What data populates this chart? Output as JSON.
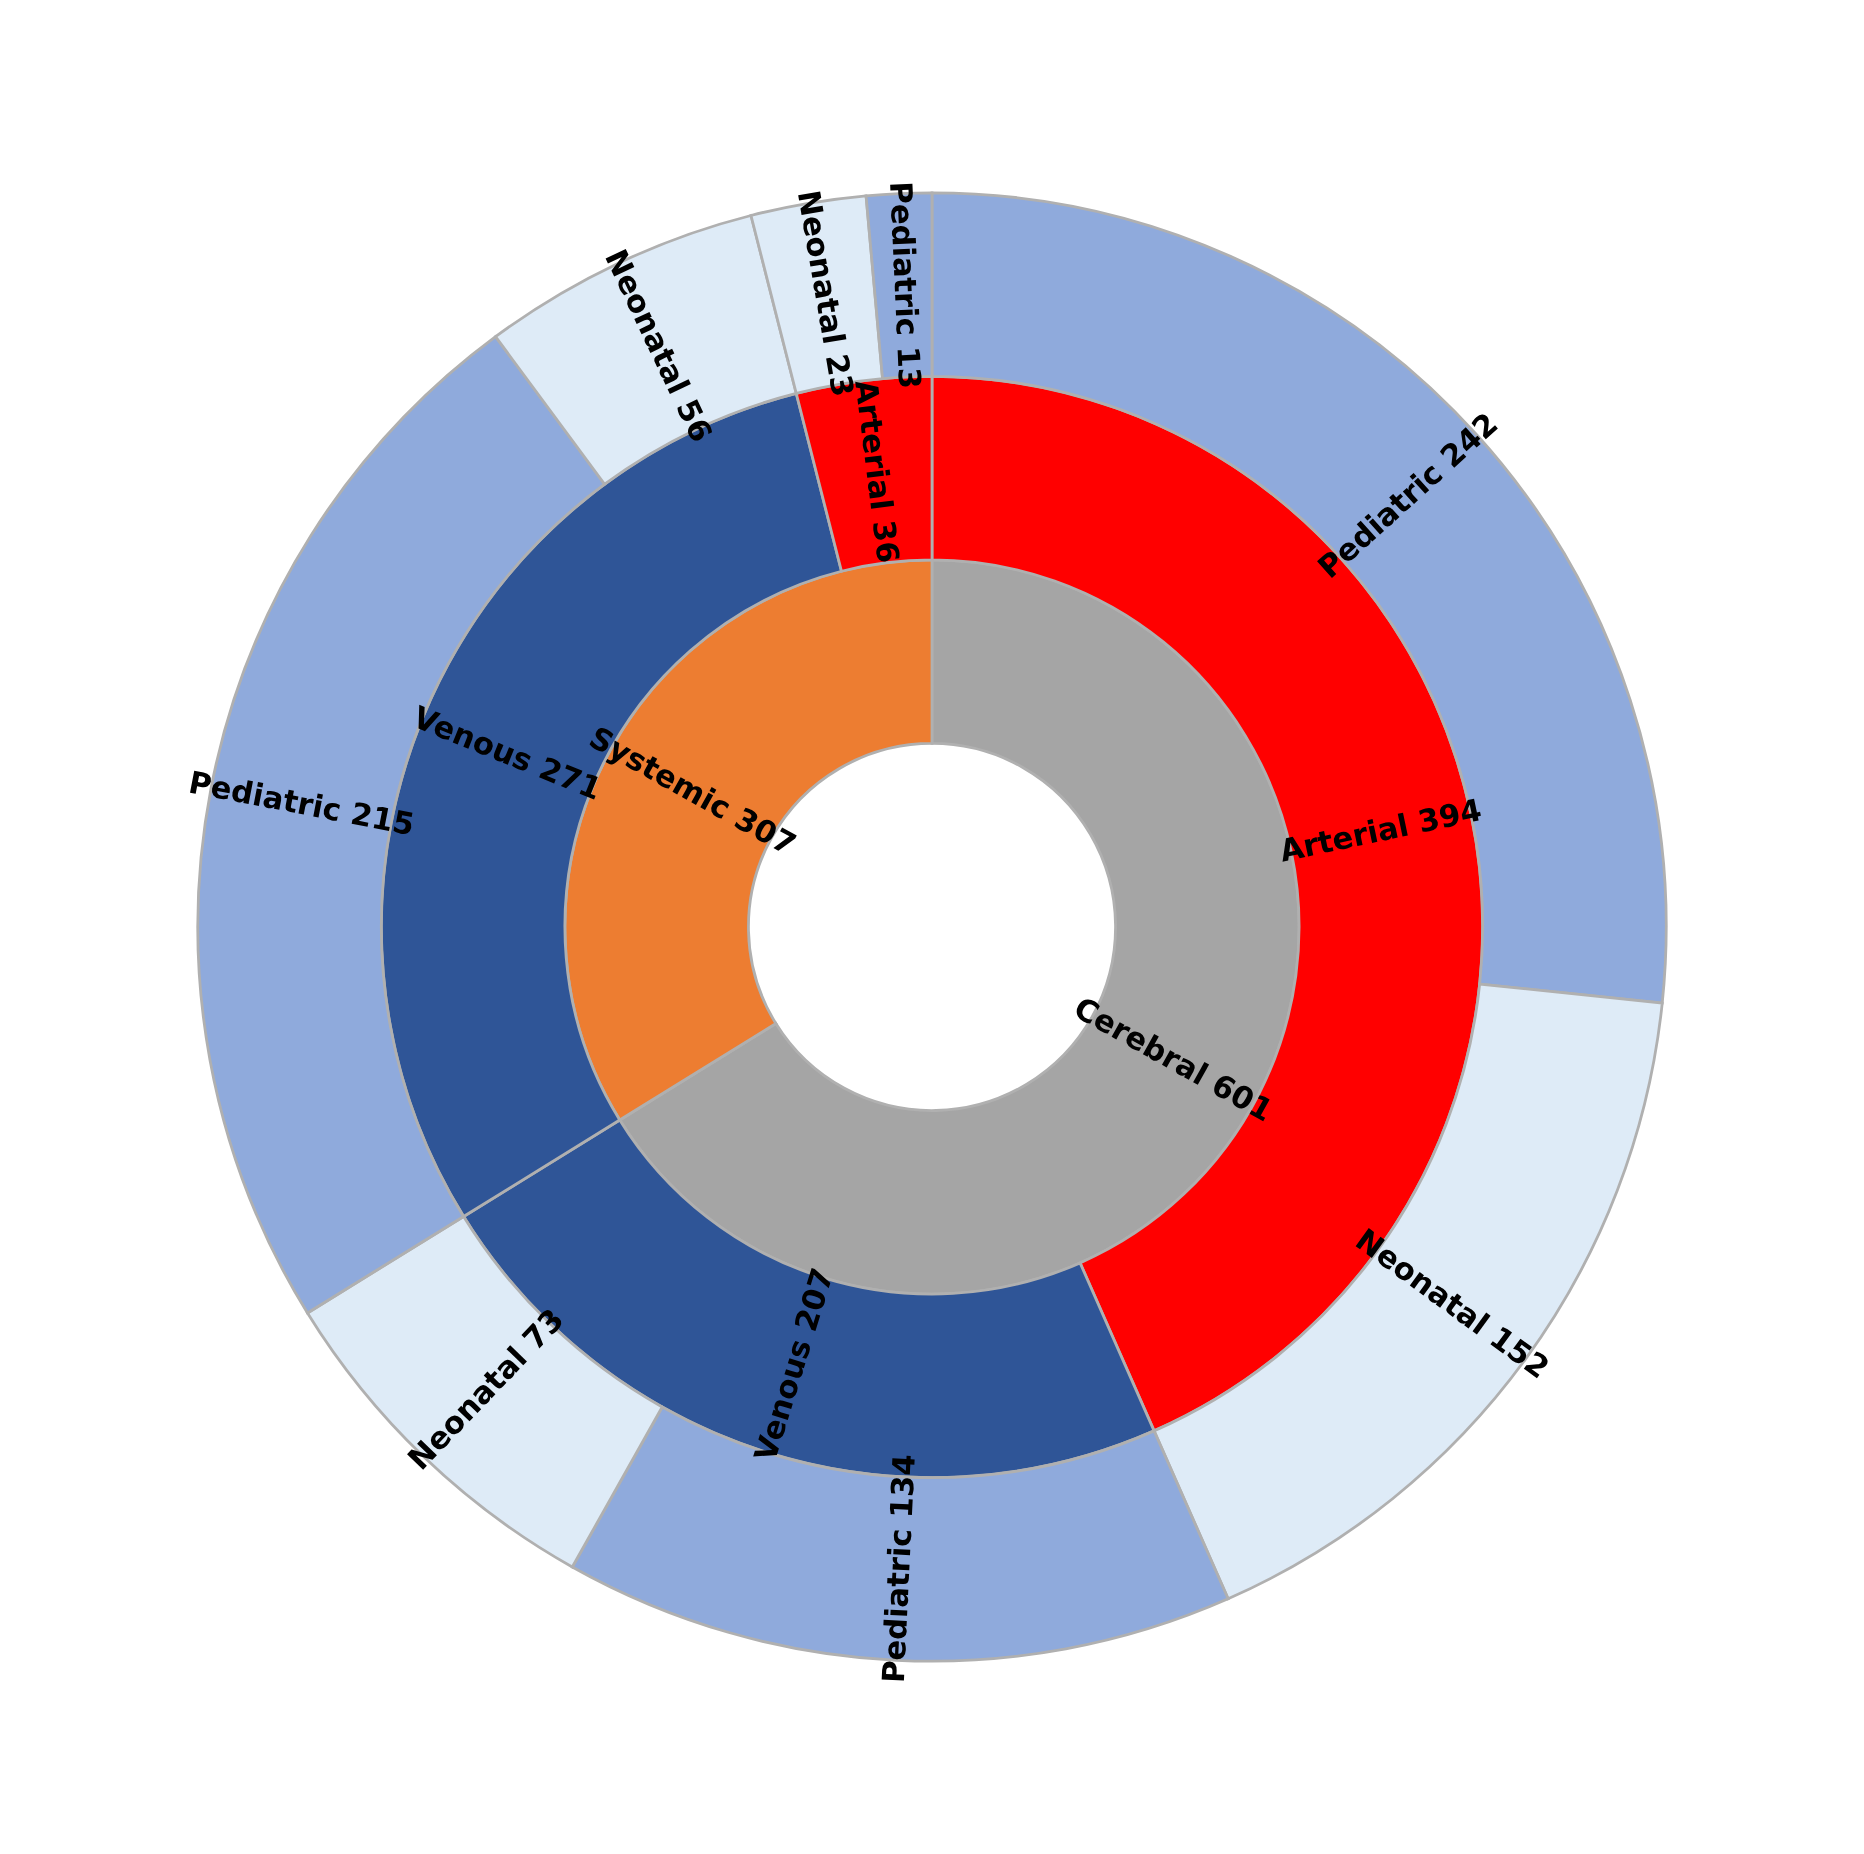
{
  "chart_data": {
    "type": "donut",
    "series": [
      {
        "values": [
          601,
          307
        ],
        "colors": [
          "#a5a5a5",
          "#ed7d31"
        ],
        "value_labels": [
          "Cerebral 601",
          "Systemic 307"
        ]
      },
      {
        "values": [
          394,
          207,
          271,
          36
        ],
        "colors": [
          "#ff0000",
          "#2f5597",
          "#2f5597",
          "#ff0000"
        ],
        "value_labels": [
          "Arterial 394",
          "Venous 207",
          "Venous 271",
          "Arterial 36"
        ]
      },
      {
        "values": [
          242,
          152,
          134,
          73,
          215,
          56,
          23,
          13
        ],
        "colors": [
          "#8faadc",
          "#deebf7",
          "#8faadc",
          "#deebf7",
          "#8faadc",
          "#deebf7",
          "#deebf7",
          "#8faadc"
        ],
        "value_labels": [
          "Pediatric 242",
          "Neonatal 152",
          "Pediatric 134",
          "Neonatal 73",
          "Pediatric 215",
          "Neonatal 56",
          "Neonatal 23",
          "Pediatric 13"
        ]
      }
    ]
  }
}
